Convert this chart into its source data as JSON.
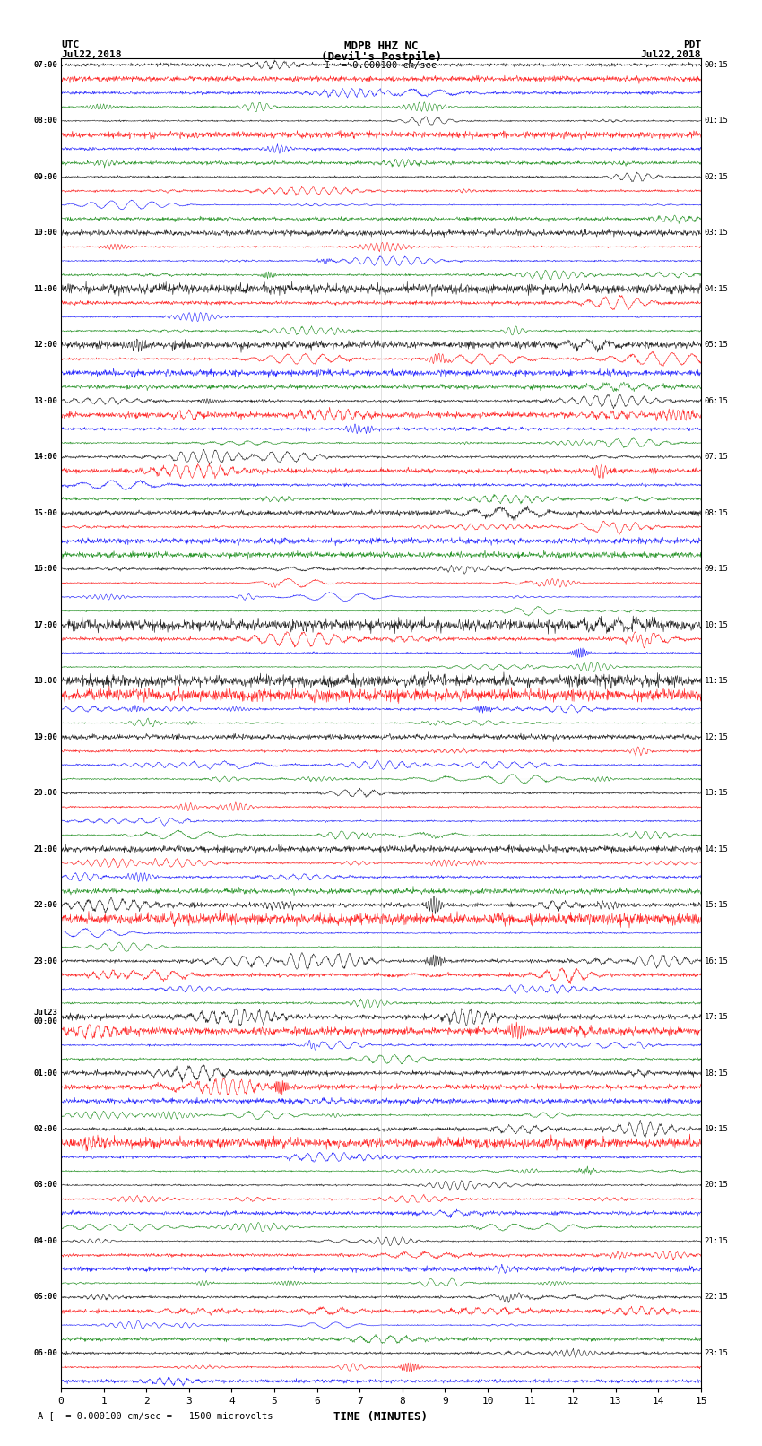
{
  "title_line1": "MDPB HHZ NC",
  "title_line2": "(Devil's Postpile)",
  "scale_label": "= 0.000100 cm/sec",
  "utc_label": "UTC\nJul22,2018",
  "pdt_label": "PDT\nJul22,2018",
  "xlabel": "TIME (MINUTES)",
  "bottom_label": "= 0.000100 cm/sec =   1500 microvolts",
  "x_ticks": [
    0,
    1,
    2,
    3,
    4,
    5,
    6,
    7,
    8,
    9,
    10,
    11,
    12,
    13,
    14,
    15
  ],
  "left_times": [
    "07:00",
    "",
    "",
    "",
    "08:00",
    "",
    "",
    "",
    "09:00",
    "",
    "",
    "",
    "10:00",
    "",
    "",
    "",
    "11:00",
    "",
    "",
    "",
    "12:00",
    "",
    "",
    "",
    "13:00",
    "",
    "",
    "",
    "14:00",
    "",
    "",
    "",
    "15:00",
    "",
    "",
    "",
    "16:00",
    "",
    "",
    "",
    "17:00",
    "",
    "",
    "",
    "18:00",
    "",
    "",
    "",
    "19:00",
    "",
    "",
    "",
    "20:00",
    "",
    "",
    "",
    "21:00",
    "",
    "",
    "",
    "22:00",
    "",
    "",
    "",
    "23:00",
    "",
    "",
    "",
    "Jul23\n00:00",
    "",
    "",
    "",
    "01:00",
    "",
    "",
    "",
    "02:00",
    "",
    "",
    "",
    "03:00",
    "",
    "",
    "",
    "04:00",
    "",
    "",
    "",
    "05:00",
    "",
    "",
    "",
    "06:00",
    "",
    ""
  ],
  "right_times": [
    "00:15",
    "",
    "",
    "",
    "01:15",
    "",
    "",
    "",
    "02:15",
    "",
    "",
    "",
    "03:15",
    "",
    "",
    "",
    "04:15",
    "",
    "",
    "",
    "05:15",
    "",
    "",
    "",
    "06:15",
    "",
    "",
    "",
    "07:15",
    "",
    "",
    "",
    "08:15",
    "",
    "",
    "",
    "09:15",
    "",
    "",
    "",
    "10:15",
    "",
    "",
    "",
    "11:15",
    "",
    "",
    "",
    "12:15",
    "",
    "",
    "",
    "13:15",
    "",
    "",
    "",
    "14:15",
    "",
    "",
    "",
    "15:15",
    "",
    "",
    "",
    "16:15",
    "",
    "",
    "",
    "17:15",
    "",
    "",
    "",
    "18:15",
    "",
    "",
    "",
    "19:15",
    "",
    "",
    "",
    "20:15",
    "",
    "",
    "",
    "21:15",
    "",
    "",
    "",
    "22:15",
    "",
    "",
    "",
    "23:15",
    "",
    ""
  ],
  "n_rows": 95,
  "colors_cycle": [
    "black",
    "red",
    "blue",
    "green"
  ],
  "background_color": "white",
  "line_color": "#888888",
  "fig_width": 8.5,
  "fig_height": 16.13,
  "dpi": 100
}
